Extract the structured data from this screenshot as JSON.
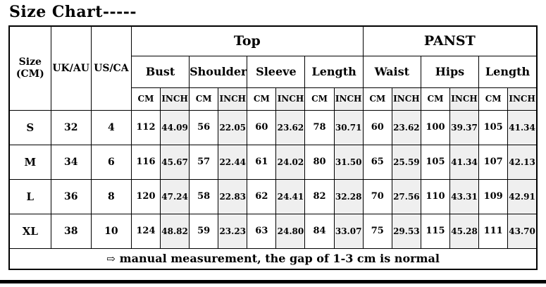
{
  "title": "Size Chart-----",
  "colors": {
    "inch_bg": "#efefef",
    "border": "#000000",
    "text": "#000000"
  },
  "chart_data": {
    "type": "table",
    "title": "Size Chart-----",
    "header": {
      "size_line1": "Size",
      "size_line2": "(CM)",
      "uk_au": "UK/AU",
      "us_ca": "US/CA",
      "groups": [
        {
          "label": "Top",
          "measures": [
            "Bust",
            "Shoulder",
            "Sleeve",
            "Length"
          ]
        },
        {
          "label": "PANST",
          "measures": [
            "Waist",
            "Hips",
            "Length"
          ]
        }
      ],
      "unit_cm": "CM",
      "unit_inch": "INCH"
    },
    "rows": [
      {
        "size": "S",
        "uk_au": "32",
        "us_ca": "4",
        "values": [
          "112",
          "44.09",
          "56",
          "22.05",
          "60",
          "23.62",
          "78",
          "30.71",
          "60",
          "23.62",
          "100",
          "39.37",
          "105",
          "41.34"
        ]
      },
      {
        "size": "M",
        "uk_au": "34",
        "us_ca": "6",
        "values": [
          "116",
          "45.67",
          "57",
          "22.44",
          "61",
          "24.02",
          "80",
          "31.50",
          "65",
          "25.59",
          "105",
          "41.34",
          "107",
          "42.13"
        ]
      },
      {
        "size": "L",
        "uk_au": "36",
        "us_ca": "8",
        "values": [
          "120",
          "47.24",
          "58",
          "22.83",
          "62",
          "24.41",
          "82",
          "32.28",
          "70",
          "27.56",
          "110",
          "43.31",
          "109",
          "42.91"
        ]
      },
      {
        "size": "XL",
        "uk_au": "38",
        "us_ca": "10",
        "values": [
          "124",
          "48.82",
          "59",
          "23.23",
          "63",
          "24.80",
          "84",
          "33.07",
          "75",
          "29.53",
          "115",
          "45.28",
          "111",
          "43.70"
        ]
      }
    ],
    "footer": {
      "arrow": "⇨",
      "text": "manual measurement, the gap of 1-3 cm is normal"
    }
  }
}
